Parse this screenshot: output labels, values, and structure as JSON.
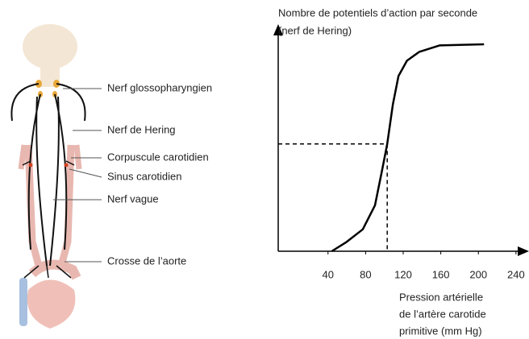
{
  "diagram": {
    "labels": [
      "Nerf glossopharyngien",
      "Nerf de Hering",
      "Corpuscule carotidien",
      "Sinus carotidien",
      "Nerf vague",
      "Crosse de l’aorte"
    ]
  },
  "chart_data": {
    "type": "line",
    "ylabel": [
      "Nombre de potentiels d’action par seconde",
      "(nerf de Hering)"
    ],
    "xlabel": [
      "Pression artérielle",
      "de l’artère carotide",
      "primitive (mm Hg)"
    ],
    "x": [
      44,
      59,
      77,
      90,
      98,
      103,
      109,
      115,
      124,
      137,
      159,
      206
    ],
    "values": [
      0,
      4,
      10,
      21,
      38,
      49,
      67,
      80,
      87,
      91,
      94,
      94.5
    ],
    "color": "#000000",
    "reference": {
      "x": 103,
      "y": 49
    },
    "xlim": [
      -13,
      253
    ],
    "xticks": [
      40,
      80,
      120,
      160,
      200,
      240
    ],
    "ylim": [
      0,
      100
    ]
  }
}
